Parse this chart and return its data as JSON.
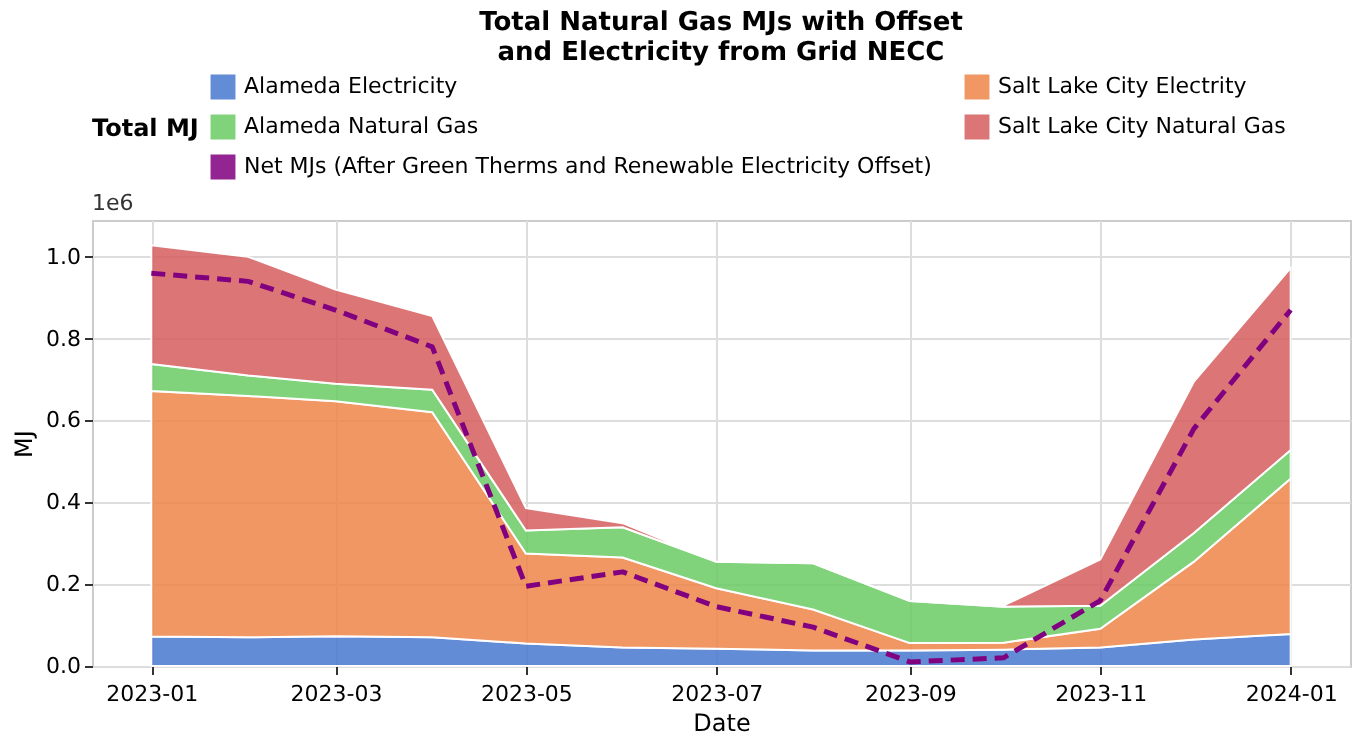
{
  "chart_data": {
    "type": "area",
    "title": "Total Natural Gas MJs with Offset\nand Electricity from Grid NECC",
    "xlabel": "Date",
    "ylabel": "MJ",
    "legend_title": "Total MJ",
    "stacked": true,
    "x": [
      "2023-01",
      "2023-02",
      "2023-03",
      "2023-04",
      "2023-05",
      "2023-06",
      "2023-07",
      "2023-08",
      "2023-09",
      "2023-10",
      "2023-11",
      "2023-12",
      "2024-01"
    ],
    "series": [
      {
        "name": "Alameda Electricity",
        "color": "#4878d0",
        "values": [
          0.072,
          0.07,
          0.073,
          0.07,
          0.055,
          0.045,
          0.042,
          0.038,
          0.038,
          0.04,
          0.045,
          0.065,
          0.078
        ]
      },
      {
        "name": "Salt Lake City Electrity",
        "color": "#ee854a",
        "values": [
          0.6,
          0.59,
          0.574,
          0.55,
          0.22,
          0.22,
          0.148,
          0.1,
          0.018,
          0.017,
          0.046,
          0.19,
          0.38
        ]
      },
      {
        "name": "Alameda Natural Gas",
        "color": "#6acc64",
        "values": [
          0.066,
          0.05,
          0.043,
          0.055,
          0.056,
          0.074,
          0.065,
          0.113,
          0.103,
          0.088,
          0.056,
          0.07,
          0.07
        ]
      },
      {
        "name": "Salt Lake City Natural Gas",
        "color": "#d65f5f",
        "values": [
          0.29,
          0.29,
          0.23,
          0.18,
          0.055,
          0.01,
          0,
          0,
          0,
          0.003,
          0.113,
          0.37,
          0.445
        ]
      },
      {
        "name": "Net MJs (After Green Therms and Renewable Electricity Offset)",
        "type": "line",
        "color": "#800080",
        "line_style": "dashed",
        "values": [
          0.96,
          0.94,
          0.87,
          0.78,
          0.195,
          0.23,
          0.145,
          0.095,
          0.01,
          0.02,
          0.16,
          0.58,
          0.87
        ]
      }
    ],
    "xlim": [
      "2022-12-13",
      "2024-01-20"
    ],
    "xticks": [
      "2023-01",
      "2023-03",
      "2023-05",
      "2023-07",
      "2023-09",
      "2023-11",
      "2024-01"
    ],
    "ylim": [
      0,
      1.09
    ],
    "yticks": [
      {
        "value": 0,
        "label": "0.0"
      },
      0.2,
      0.4,
      0.6,
      0.8,
      {
        "value": 1,
        "label": "1.0"
      }
    ],
    "annotations": [
      "1e6"
    ],
    "grid": true,
    "legend": "top"
  }
}
